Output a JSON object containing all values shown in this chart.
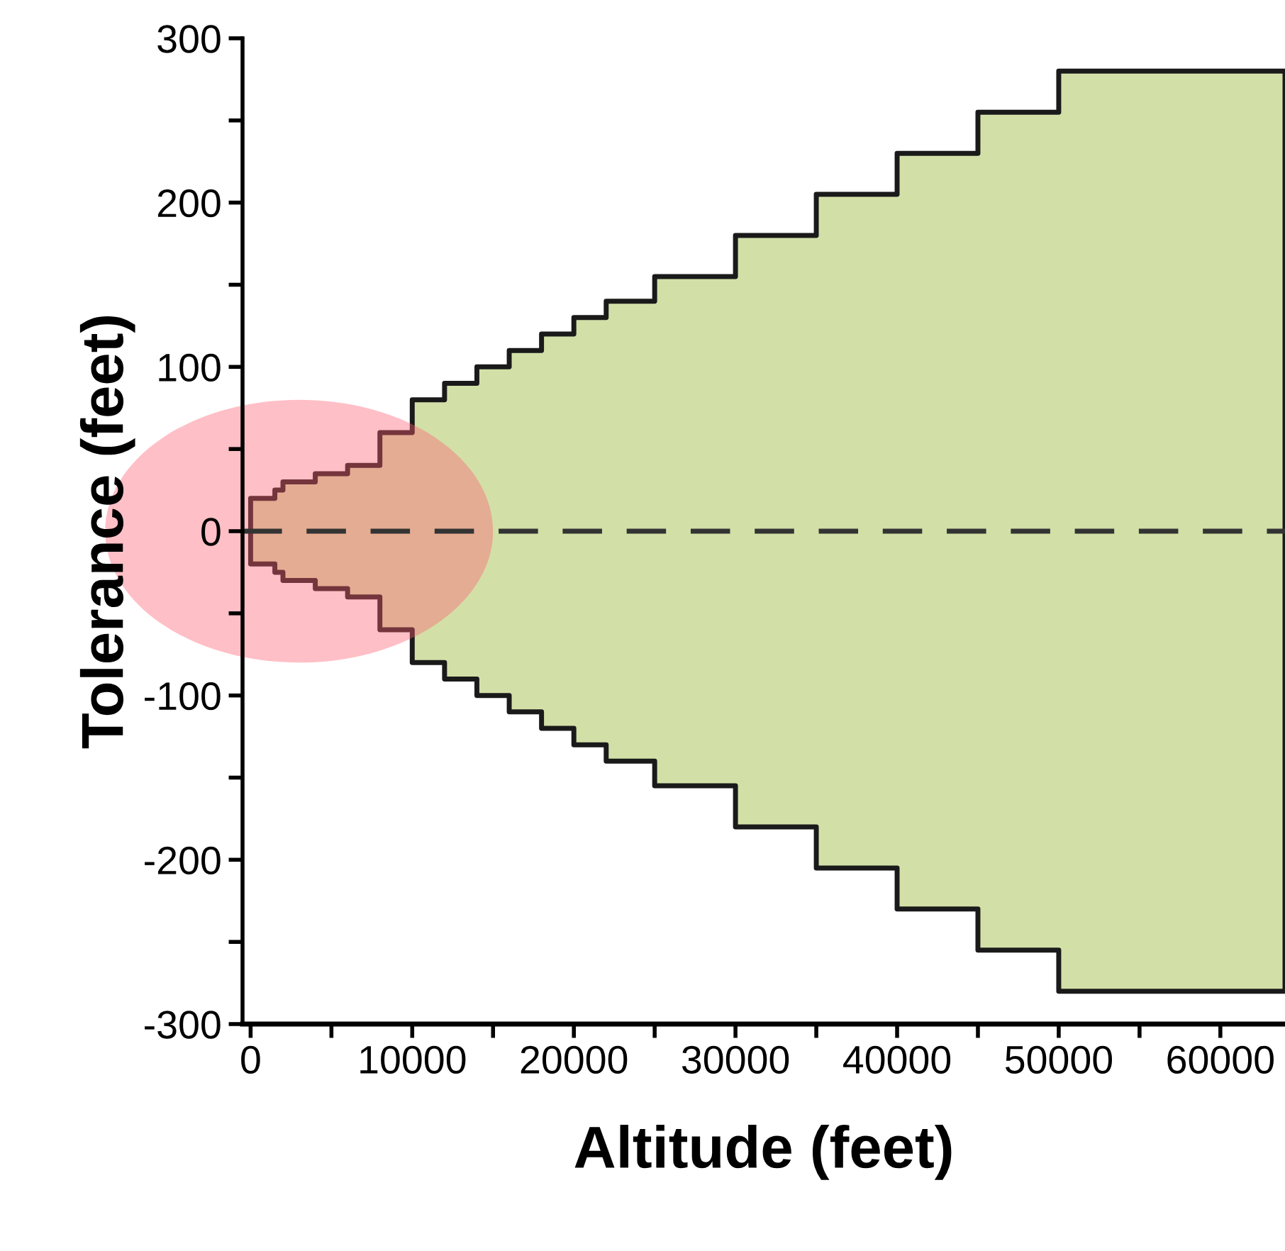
{
  "chart_data": {
    "type": "area",
    "xlabel": "Altitude (feet)",
    "ylabel": "Tolerance (feet)",
    "x": [
      0,
      1500,
      2000,
      4000,
      6000,
      8000,
      10000,
      12000,
      14000,
      16000,
      18000,
      20000,
      22000,
      25000,
      30000,
      35000,
      40000,
      45000,
      50000,
      64000
    ],
    "series": [
      {
        "color": "#d2e0a8",
        "values": [
          20,
          25,
          30,
          35,
          40,
          60,
          80,
          90,
          100,
          110,
          120,
          130,
          140,
          155,
          180,
          205,
          230,
          255,
          280,
          280
        ]
      },
      {
        "color": "#d2e0a8",
        "values": [
          -20,
          -25,
          -30,
          -35,
          -40,
          -60,
          -80,
          -90,
          -100,
          -110,
          -120,
          -130,
          -140,
          -155,
          -180,
          -205,
          -230,
          -255,
          -280,
          -280
        ]
      }
    ],
    "xlim": [
      -500,
      64000
    ],
    "xticks": [
      0,
      {
        "value": 5000,
        "label": null
      },
      10000,
      {
        "value": 15000,
        "label": null
      },
      20000,
      {
        "value": 25000,
        "label": null
      },
      30000,
      {
        "value": 35000,
        "label": null
      },
      40000,
      {
        "value": 45000,
        "label": null
      },
      50000,
      {
        "value": 55000,
        "label": null
      },
      60000
    ],
    "ylim": [
      -300,
      300
    ],
    "yticks": [
      -300,
      {
        "value": -250,
        "label": null
      },
      -200,
      {
        "value": -150,
        "label": null
      },
      -100,
      {
        "value": -50,
        "label": null
      },
      0,
      {
        "value": 50,
        "label": null
      },
      100,
      {
        "value": 150,
        "label": null
      },
      200,
      {
        "value": 250,
        "label": null
      },
      300
    ],
    "ref_lines": [
      {
        "axis": "y",
        "value": 0,
        "line_style": "dashed",
        "color": "#333333"
      }
    ],
    "grid": false,
    "legend": false
  }
}
